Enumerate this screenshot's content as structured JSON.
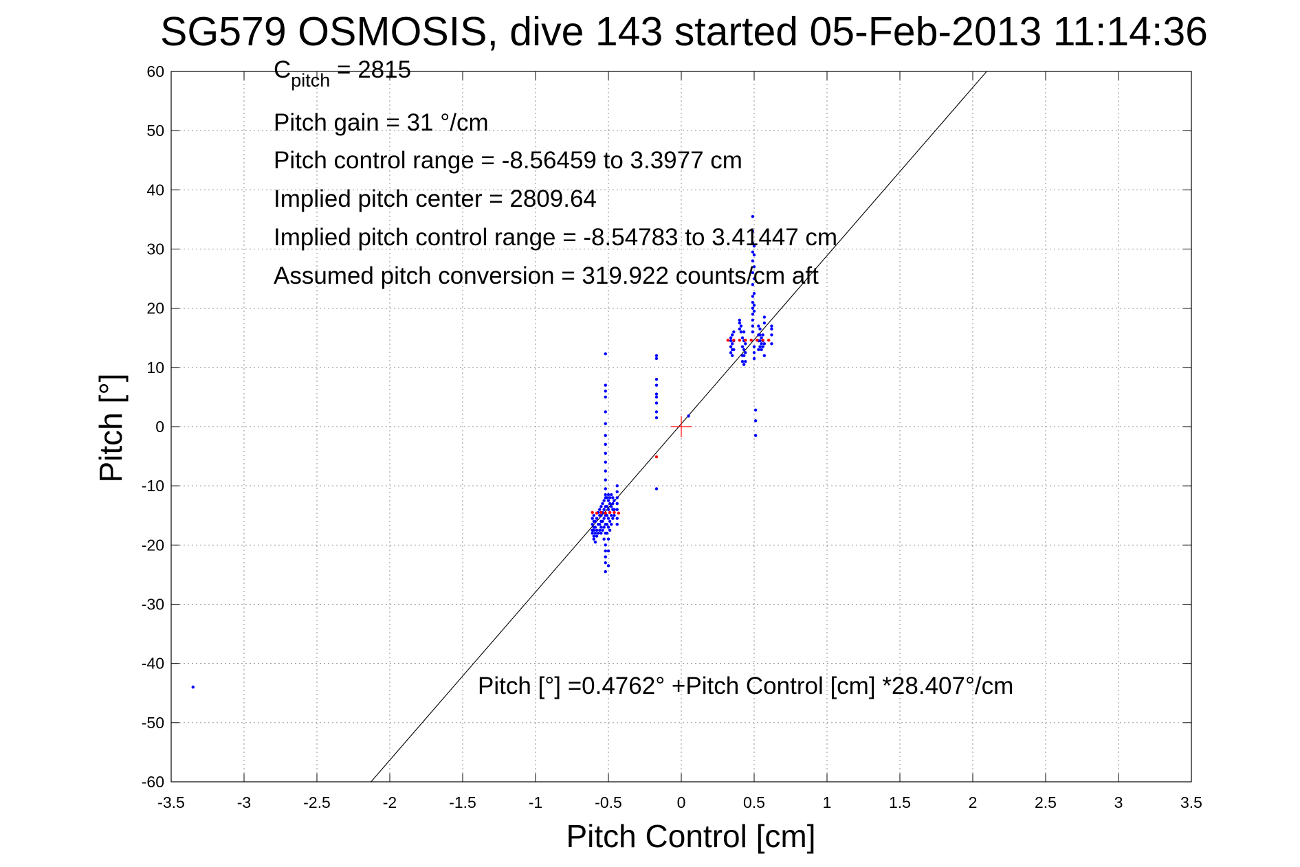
{
  "chart_data": {
    "type": "scatter",
    "title": "SG579 OSMOSIS, dive 143 started 05-Feb-2013 11:14:36",
    "xlabel": "Pitch Control [cm]",
    "ylabel": "Pitch [°]",
    "xlim": [
      -3.5,
      3.5
    ],
    "ylim": [
      -60,
      60
    ],
    "xticks": [
      -3.5,
      -3,
      -2.5,
      -2,
      -1.5,
      -1,
      -0.5,
      0,
      0.5,
      1,
      1.5,
      2,
      2.5,
      3,
      3.5
    ],
    "xtick_labels": [
      "-3.5",
      "-3",
      "-2.5",
      "-2",
      "-1.5",
      "-1",
      "-0.5",
      "0",
      "0.5",
      "1",
      "1.5",
      "2",
      "2.5",
      "3",
      "3.5"
    ],
    "yticks": [
      -60,
      -50,
      -40,
      -30,
      -20,
      -10,
      0,
      10,
      20,
      30,
      40,
      50,
      60
    ],
    "ytick_labels": [
      "-60",
      "-50",
      "-40",
      "-30",
      "-20",
      "-10",
      "0",
      "10",
      "20",
      "30",
      "40",
      "50",
      "60"
    ],
    "grid": true,
    "colors": {
      "observed": "#0000ff",
      "binned": "#ff0000",
      "fit": "#000000",
      "center_marker": "#ff0000"
    },
    "annotations": {
      "c_pitch_main": "C",
      "c_pitch_sub": "pitch",
      "c_pitch_value": " = 2815",
      "pitch_gain": "Pitch gain = 31 °/cm",
      "control_range": "Pitch control range = -8.56459 to 3.3977 cm",
      "implied_center": "Implied pitch center = 2809.64",
      "implied_range": "Implied pitch control range = -8.54783 to 3.41447 cm",
      "conversion": "Assumed pitch conversion = 319.922 counts/cm aft",
      "fit_equation": "Pitch [°] =0.4762° +Pitch Control [cm] *28.407°/cm"
    },
    "fit_line": {
      "intercept": 0.4762,
      "slope": 28.407
    },
    "center_marker": [
      0,
      0
    ],
    "series": [
      {
        "values": [
          [
            -3.35,
            -44
          ],
          [
            -0.61,
            -15.5
          ],
          [
            -0.61,
            -16.5
          ],
          [
            -0.61,
            -17.5
          ],
          [
            -0.61,
            -18.0
          ],
          [
            -0.6,
            -15
          ],
          [
            -0.6,
            -16
          ],
          [
            -0.6,
            -17
          ],
          [
            -0.6,
            -17.5
          ],
          [
            -0.6,
            -18.5
          ],
          [
            -0.6,
            -19
          ],
          [
            -0.59,
            -16
          ],
          [
            -0.59,
            -17
          ],
          [
            -0.59,
            -18
          ],
          [
            -0.59,
            -19.5
          ],
          [
            -0.58,
            -15.5
          ],
          [
            -0.58,
            -17.5
          ],
          [
            -0.58,
            -18.5
          ],
          [
            -0.57,
            -14.5
          ],
          [
            -0.57,
            -16.5
          ],
          [
            -0.57,
            -18
          ],
          [
            -0.56,
            -14
          ],
          [
            -0.56,
            -15
          ],
          [
            -0.56,
            -16.5
          ],
          [
            -0.56,
            -17.5
          ],
          [
            -0.55,
            -13.5
          ],
          [
            -0.55,
            -15
          ],
          [
            -0.55,
            -16
          ],
          [
            -0.55,
            -17
          ],
          [
            -0.55,
            -18
          ],
          [
            -0.54,
            -13
          ],
          [
            -0.54,
            -14.5
          ],
          [
            -0.54,
            -16
          ],
          [
            -0.54,
            -17.5
          ],
          [
            -0.53,
            -12.5
          ],
          [
            -0.53,
            -14
          ],
          [
            -0.53,
            -15.5
          ],
          [
            -0.53,
            -17
          ],
          [
            -0.53,
            -19
          ],
          [
            -0.52,
            -12
          ],
          [
            -0.52,
            -13.5
          ],
          [
            -0.52,
            -15
          ],
          [
            -0.52,
            -16.5
          ],
          [
            -0.52,
            -18
          ],
          [
            -0.52,
            -20
          ],
          [
            -0.52,
            12.3
          ],
          [
            -0.52,
            7
          ],
          [
            -0.52,
            6
          ],
          [
            -0.52,
            5
          ],
          [
            -0.52,
            2.5
          ],
          [
            -0.52,
            0.5
          ],
          [
            -0.52,
            -1.5
          ],
          [
            -0.52,
            -3
          ],
          [
            -0.52,
            -4.5
          ],
          [
            -0.52,
            -6
          ],
          [
            -0.52,
            -7.5
          ],
          [
            -0.52,
            -9
          ],
          [
            -0.52,
            -10.5
          ],
          [
            -0.52,
            -11.5
          ],
          [
            -0.52,
            -21
          ],
          [
            -0.52,
            -22
          ],
          [
            -0.52,
            -23
          ],
          [
            -0.52,
            -24.5
          ],
          [
            -0.51,
            -12
          ],
          [
            -0.51,
            -13.5
          ],
          [
            -0.51,
            -15
          ],
          [
            -0.51,
            -16.5
          ],
          [
            -0.51,
            -18
          ],
          [
            -0.5,
            -11.5
          ],
          [
            -0.5,
            -12.5
          ],
          [
            -0.5,
            -14
          ],
          [
            -0.5,
            -15.5
          ],
          [
            -0.5,
            -17
          ],
          [
            -0.5,
            -19
          ],
          [
            -0.5,
            -21
          ],
          [
            -0.5,
            -23.5
          ],
          [
            -0.49,
            -12
          ],
          [
            -0.49,
            -13
          ],
          [
            -0.49,
            -14.5
          ],
          [
            -0.49,
            -16
          ],
          [
            -0.49,
            -17.5
          ],
          [
            -0.48,
            -11.5
          ],
          [
            -0.48,
            -13.5
          ],
          [
            -0.48,
            -15
          ],
          [
            -0.48,
            -16.5
          ],
          [
            -0.47,
            -12
          ],
          [
            -0.47,
            -13
          ],
          [
            -0.47,
            -14
          ],
          [
            -0.47,
            -15.5
          ],
          [
            -0.46,
            -12.5
          ],
          [
            -0.46,
            -14
          ],
          [
            -0.46,
            -15
          ],
          [
            -0.44,
            -10
          ],
          [
            -0.44,
            -11
          ],
          [
            -0.44,
            -12
          ],
          [
            -0.44,
            -13
          ],
          [
            -0.44,
            -14
          ],
          [
            -0.44,
            -15.5
          ],
          [
            -0.44,
            -16.5
          ],
          [
            -0.17,
            12
          ],
          [
            -0.17,
            11.5
          ],
          [
            -0.17,
            8
          ],
          [
            -0.17,
            7
          ],
          [
            -0.17,
            5.5
          ],
          [
            -0.17,
            5
          ],
          [
            -0.17,
            4
          ],
          [
            -0.17,
            2.5
          ],
          [
            -0.17,
            1.5
          ],
          [
            -0.17,
            -10.5
          ],
          [
            0.05,
            1.8
          ],
          [
            0.34,
            12.5
          ],
          [
            0.34,
            13.5
          ],
          [
            0.34,
            14.5
          ],
          [
            0.34,
            15
          ],
          [
            0.35,
            12
          ],
          [
            0.35,
            13
          ],
          [
            0.35,
            14
          ],
          [
            0.35,
            15.5
          ],
          [
            0.36,
            13
          ],
          [
            0.36,
            14.5
          ],
          [
            0.36,
            16
          ],
          [
            0.4,
            16.5
          ],
          [
            0.4,
            17.5
          ],
          [
            0.4,
            18
          ],
          [
            0.41,
            16
          ],
          [
            0.41,
            17
          ],
          [
            0.42,
            11
          ],
          [
            0.42,
            12
          ],
          [
            0.42,
            13.5
          ],
          [
            0.42,
            15
          ],
          [
            0.43,
            10.5
          ],
          [
            0.43,
            12
          ],
          [
            0.43,
            13
          ],
          [
            0.43,
            14.5
          ],
          [
            0.43,
            16
          ],
          [
            0.44,
            11
          ],
          [
            0.44,
            12.5
          ],
          [
            0.44,
            14
          ],
          [
            0.49,
            35.5
          ],
          [
            0.49,
            33
          ],
          [
            0.49,
            31
          ],
          [
            0.49,
            29.5
          ],
          [
            0.49,
            28
          ],
          [
            0.49,
            26
          ],
          [
            0.49,
            24
          ],
          [
            0.49,
            22
          ],
          [
            0.49,
            21
          ],
          [
            0.49,
            20
          ],
          [
            0.49,
            19
          ],
          [
            0.49,
            18
          ],
          [
            0.49,
            17
          ],
          [
            0.49,
            16
          ],
          [
            0.5,
            29
          ],
          [
            0.5,
            30.5
          ],
          [
            0.5,
            27
          ],
          [
            0.5,
            25
          ],
          [
            0.5,
            22.5
          ],
          [
            0.5,
            20.5
          ],
          [
            0.5,
            19.5
          ],
          [
            0.5,
            13.5
          ],
          [
            0.5,
            12.5
          ],
          [
            0.5,
            11.5
          ],
          [
            0.51,
            2.8
          ],
          [
            0.51,
            1
          ],
          [
            0.51,
            -1.5
          ],
          [
            0.53,
            13
          ],
          [
            0.53,
            14.5
          ],
          [
            0.53,
            15.5
          ],
          [
            0.53,
            17
          ],
          [
            0.54,
            13.5
          ],
          [
            0.54,
            14.5
          ],
          [
            0.54,
            15.5
          ],
          [
            0.54,
            16.5
          ],
          [
            0.55,
            13
          ],
          [
            0.55,
            14
          ],
          [
            0.55,
            15
          ],
          [
            0.56,
            13.5
          ],
          [
            0.56,
            14.5
          ],
          [
            0.56,
            15.5
          ],
          [
            0.57,
            17.5
          ],
          [
            0.57,
            18.5
          ],
          [
            0.57,
            14
          ],
          [
            0.57,
            12
          ],
          [
            0.62,
            15.5
          ],
          [
            0.62,
            16.5
          ],
          [
            0.62,
            17
          ],
          [
            0.62,
            14
          ]
        ]
      },
      {
        "values": [
          [
            -0.61,
            -14.5
          ],
          [
            -0.58,
            -14.6
          ],
          [
            -0.55,
            -14.5
          ],
          [
            -0.52,
            -14.6
          ],
          [
            -0.49,
            -14.5
          ],
          [
            -0.46,
            -14.5
          ],
          [
            -0.43,
            -14.6
          ],
          [
            -0.17,
            -5.1
          ],
          [
            0.32,
            14.6
          ],
          [
            0.36,
            14.6
          ],
          [
            0.4,
            14.6
          ],
          [
            0.44,
            14.6
          ],
          [
            0.48,
            14.6
          ],
          [
            0.52,
            14.6
          ],
          [
            0.56,
            14.6
          ],
          [
            0.6,
            14.6
          ]
        ]
      }
    ]
  }
}
